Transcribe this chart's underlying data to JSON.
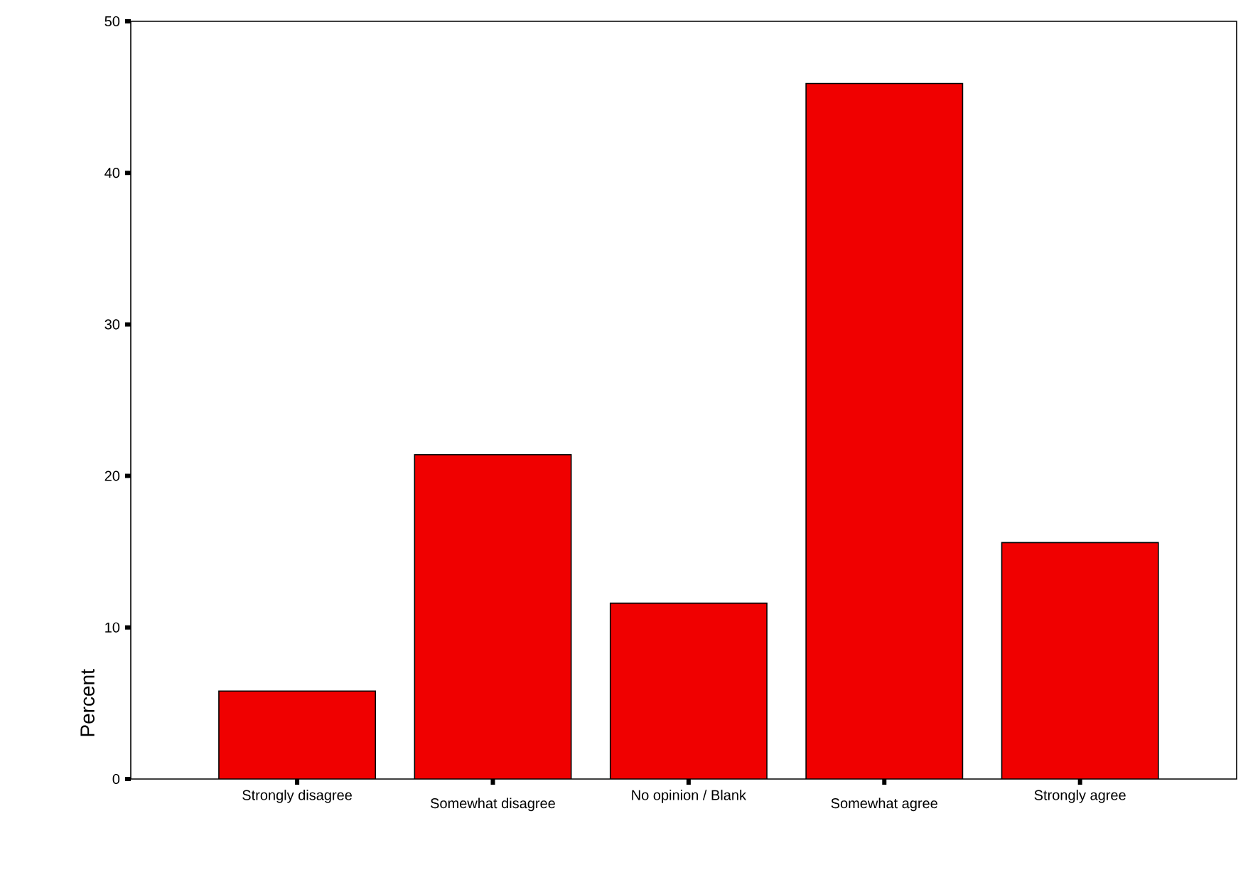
{
  "chart_data": {
    "type": "bar",
    "ylabel": "Percent",
    "categories": [
      "Strongly disagree",
      "Somewhat disagree",
      "No opinion / Blank",
      "Somewhat agree",
      "Strongly agree"
    ],
    "values": [
      5.8,
      21.4,
      11.6,
      45.9,
      15.6
    ],
    "color": "#f00000",
    "ylim": [
      0,
      50
    ],
    "yticks": [
      0,
      10,
      20,
      30,
      40,
      50
    ]
  }
}
